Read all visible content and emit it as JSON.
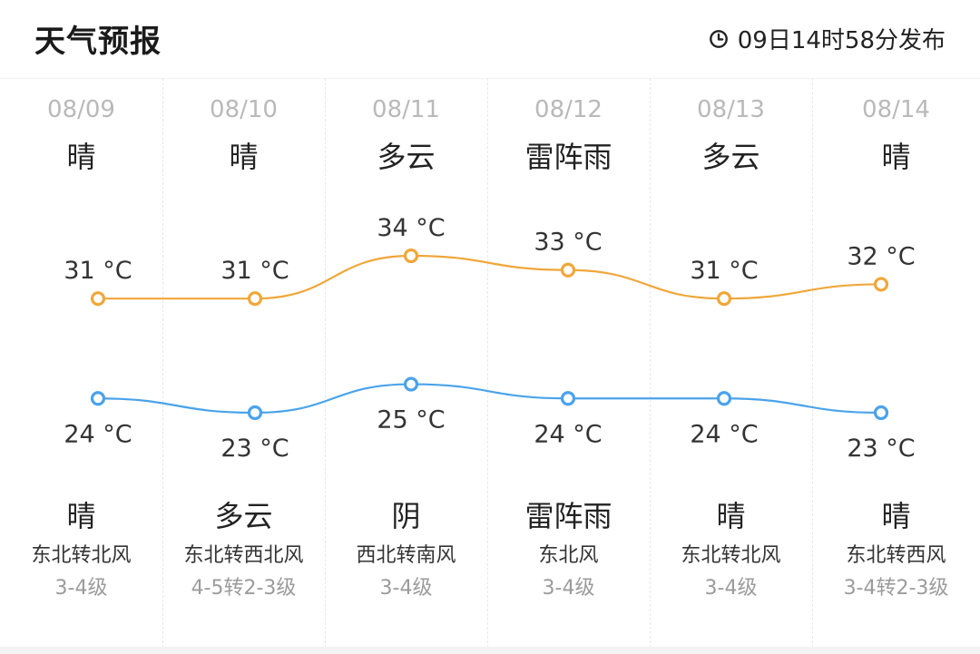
{
  "header": {
    "title": "天气预报",
    "publish_time": "09日14时58分发布",
    "clock_icon": "clock-icon"
  },
  "colors": {
    "high": "#f0a73a",
    "low": "#4aa3ea"
  },
  "days": [
    {
      "date": "08/09",
      "day_weather": "晴",
      "night_weather": "晴",
      "wind_dir": "东北转北风",
      "wind_level": "3-4级"
    },
    {
      "date": "08/10",
      "day_weather": "晴",
      "night_weather": "多云",
      "wind_dir": "东北转西北风",
      "wind_level": "4-5转2-3级"
    },
    {
      "date": "08/11",
      "day_weather": "多云",
      "night_weather": "阴",
      "wind_dir": "西北转南风",
      "wind_level": "3-4级"
    },
    {
      "date": "08/12",
      "day_weather": "雷阵雨",
      "night_weather": "雷阵雨",
      "wind_dir": "东北风",
      "wind_level": "3-4级"
    },
    {
      "date": "08/13",
      "day_weather": "多云",
      "night_weather": "晴",
      "wind_dir": "东北转北风",
      "wind_level": "3-4级"
    },
    {
      "date": "08/14",
      "day_weather": "晴",
      "night_weather": "晴",
      "wind_dir": "东北转西风",
      "wind_level": "3-4转2-3级"
    }
  ],
  "chart_data": {
    "type": "line",
    "categories": [
      "08/09",
      "08/10",
      "08/11",
      "08/12",
      "08/13",
      "08/14"
    ],
    "unit": "°C",
    "series": [
      {
        "values": [
          31,
          31,
          34,
          33,
          31,
          32
        ]
      },
      {
        "values": [
          24,
          23,
          25,
          24,
          24,
          23
        ]
      }
    ]
  }
}
